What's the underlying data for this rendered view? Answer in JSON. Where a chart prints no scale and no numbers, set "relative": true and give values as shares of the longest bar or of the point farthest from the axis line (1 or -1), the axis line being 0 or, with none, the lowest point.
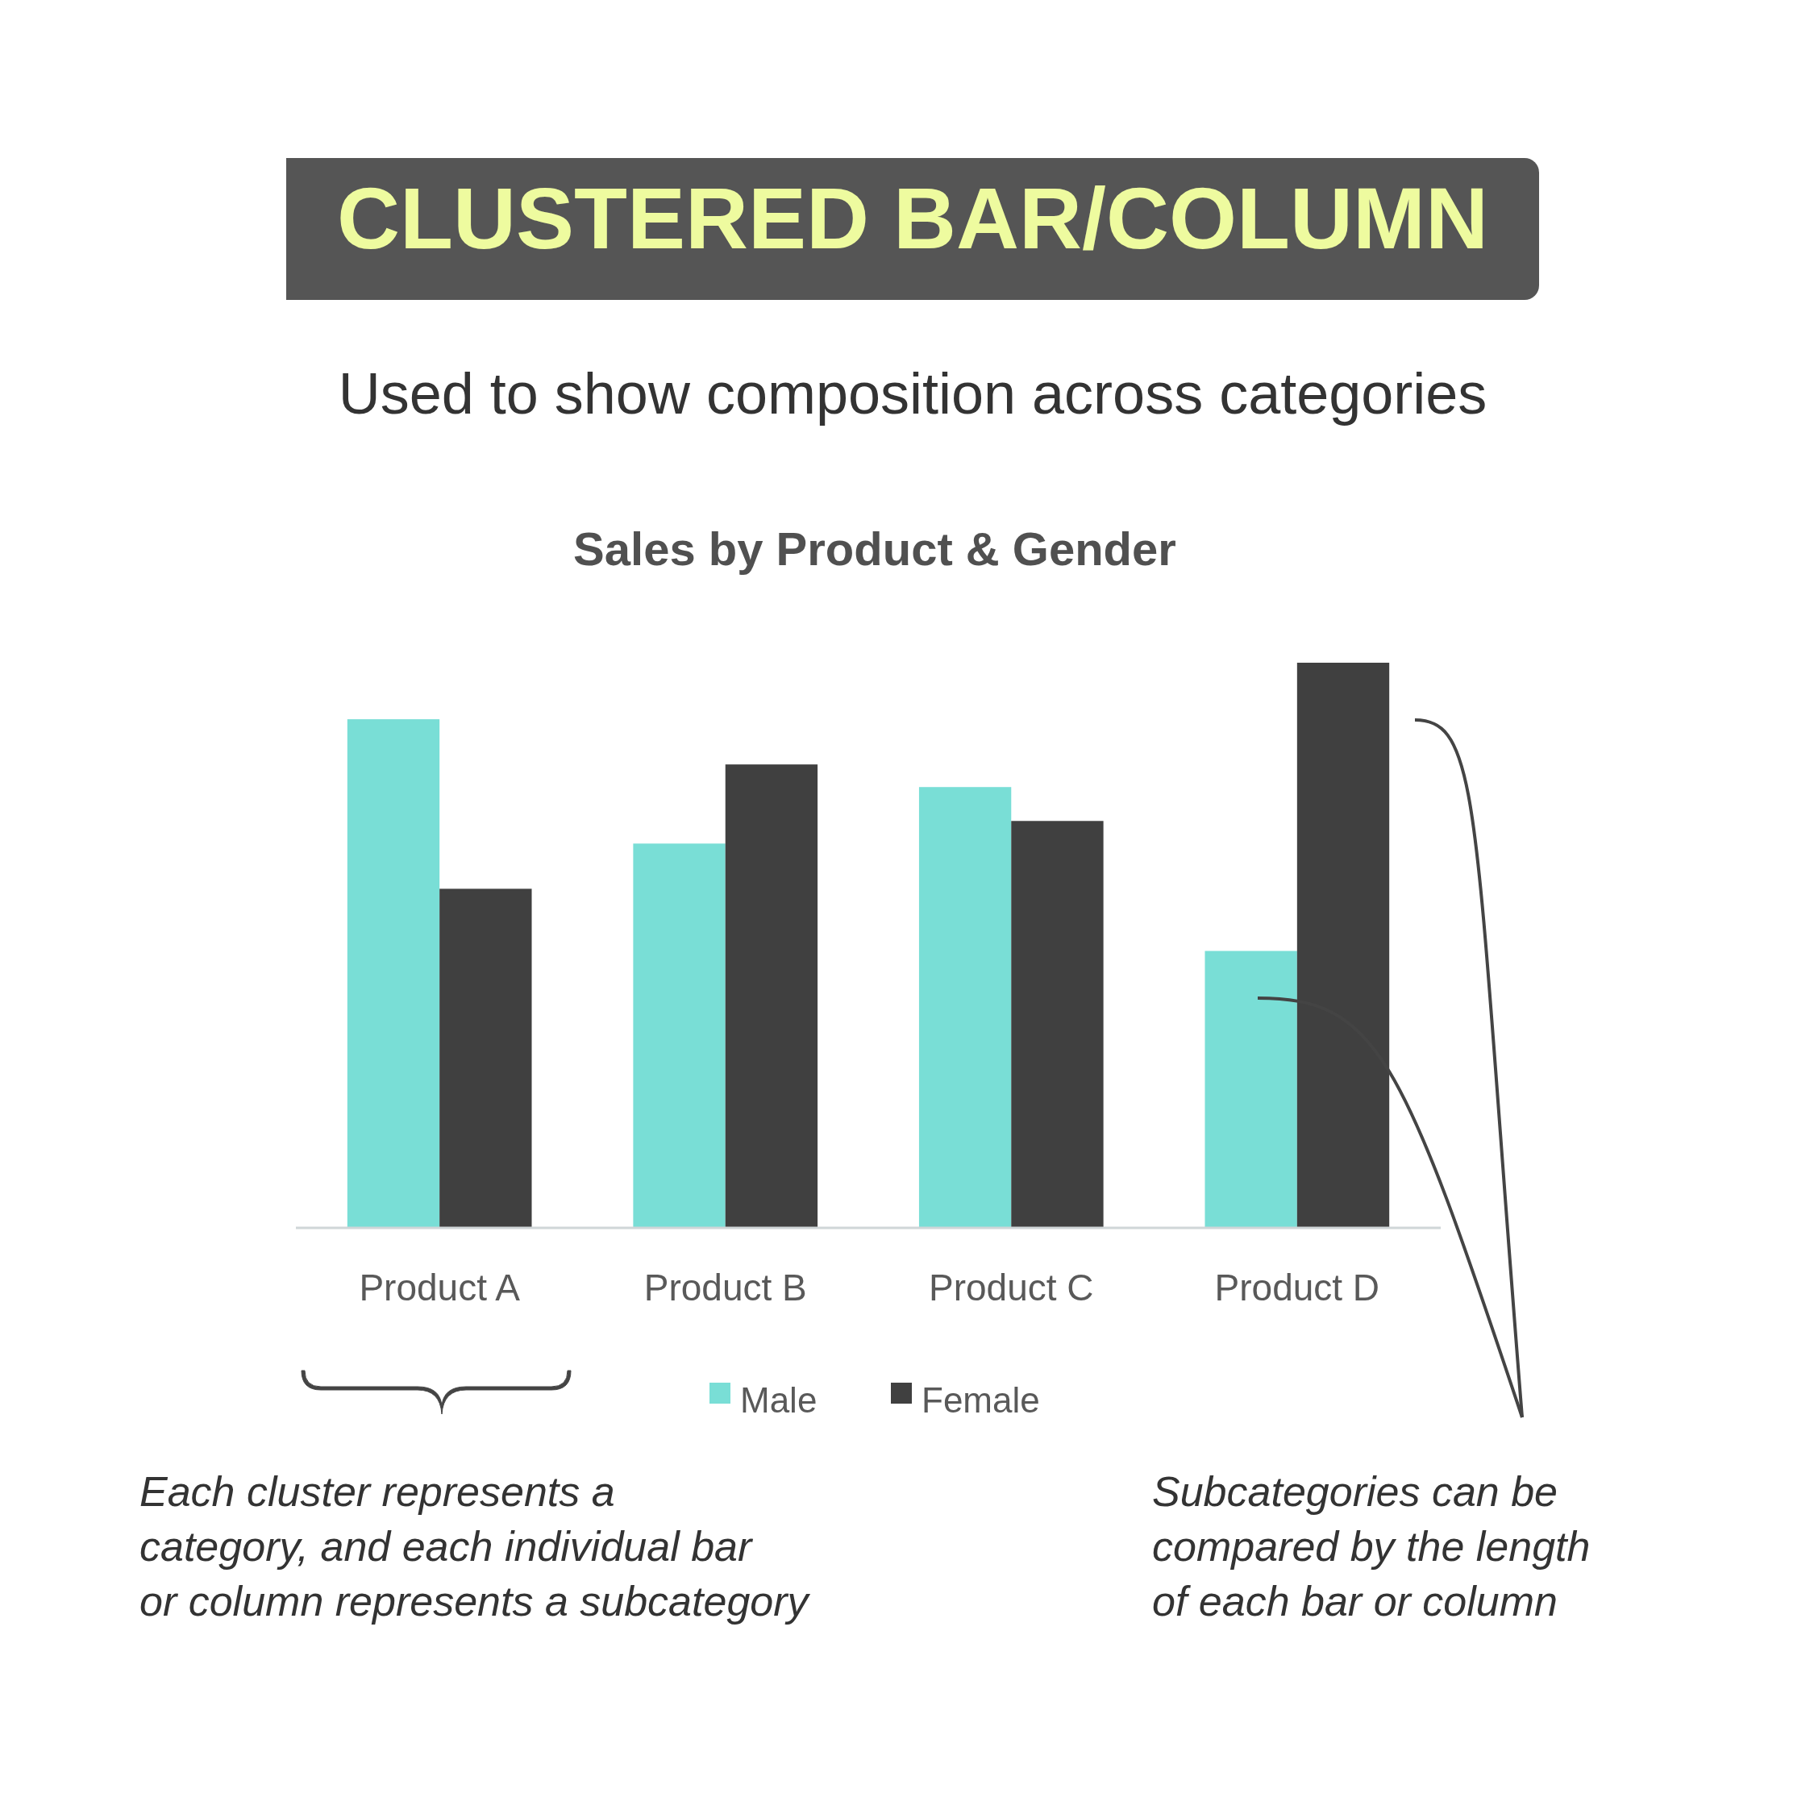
{
  "chart_data": {
    "type": "bar",
    "title": "CLUSTERED BAR/COLUMN",
    "subtitle": "Used to show composition across categories",
    "categories": [
      "Product A",
      "Product B",
      "Product C",
      "Product D"
    ],
    "series": [
      {
        "name": "Male",
        "color": "#79ded6",
        "values": [
          0.9,
          0.68,
          0.78,
          0.49
        ]
      },
      {
        "name": "Female",
        "color": "#404040",
        "values": [
          0.6,
          0.82,
          0.72,
          1
        ]
      }
    ],
    "relative": true,
    "legend": "bottom",
    "grid": false,
    "annotations": [
      "Sales by Product & Gender",
      "Each cluster represents a category, and each individual bar or column represents a subcategory",
      "Subcategories can be compared by the length of each bar or column"
    ]
  }
}
